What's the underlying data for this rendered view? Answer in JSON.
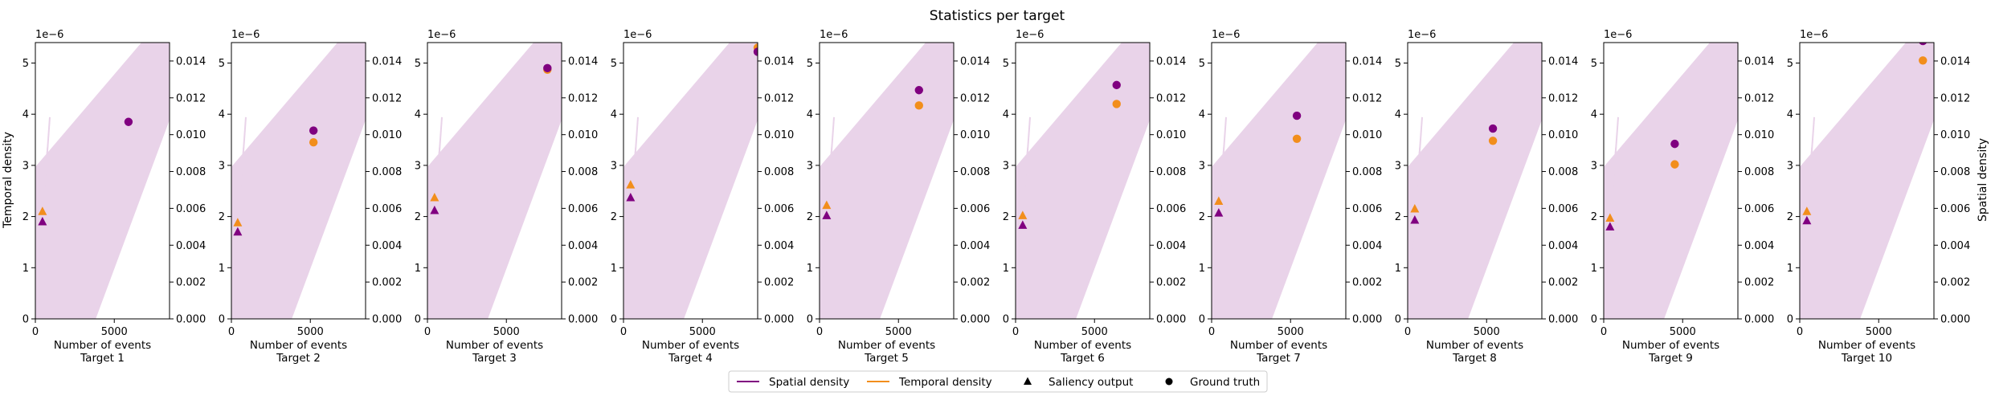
{
  "figure": {
    "title": "Statistics per target",
    "left_ylabel": "Temporal density",
    "right_ylabel": "Spatial density",
    "xlabel": "Number of events",
    "offset_text": "1e−6",
    "left_ticks": [
      "0",
      "1",
      "2",
      "3",
      "4",
      "5"
    ],
    "right_ticks": [
      "0.000",
      "0.002",
      "0.004",
      "0.006",
      "0.008",
      "0.010",
      "0.012",
      "0.014"
    ],
    "x_ticks": [
      "0",
      "5000"
    ]
  },
  "legend": {
    "items": [
      {
        "label": "Spatial density",
        "kind": "line",
        "color": "#800080"
      },
      {
        "label": "Temporal density",
        "kind": "line",
        "color": "#f28e1c"
      },
      {
        "label": "Saliency output",
        "kind": "triangle",
        "color": "#000000"
      },
      {
        "label": "Ground truth",
        "kind": "circle",
        "color": "#000000"
      }
    ]
  },
  "colors": {
    "spatial": "#800080",
    "temporal": "#f28e1c",
    "band": "#e9d3e9"
  },
  "chart_data": {
    "type": "scatter",
    "xlim": [
      0,
      8500
    ],
    "left_ylim": [
      0,
      5.4
    ],
    "right_ylim": [
      0,
      0.015
    ],
    "panels": [
      {
        "name": "Target 1",
        "gt_x": 5900,
        "gt_spatial": 3.85,
        "gt_temporal": null,
        "sal_x": 450,
        "sal_spatial": 1.9,
        "sal_temporal": 2.1
      },
      {
        "name": "Target 2",
        "gt_x": 5200,
        "gt_spatial": 3.68,
        "gt_temporal": 3.45,
        "sal_x": 400,
        "sal_spatial": 1.7,
        "sal_temporal": 1.88
      },
      {
        "name": "Target 3",
        "gt_x": 7600,
        "gt_spatial": 4.9,
        "gt_temporal": 4.87,
        "sal_x": 450,
        "sal_spatial": 2.12,
        "sal_temporal": 2.37
      },
      {
        "name": "Target 4",
        "gt_x": 8500,
        "gt_spatial": 5.22,
        "gt_temporal": 5.3,
        "sal_x": 450,
        "sal_spatial": 2.37,
        "sal_temporal": 2.62
      },
      {
        "name": "Target 5",
        "gt_x": 6300,
        "gt_spatial": 4.47,
        "gt_temporal": 4.17,
        "sal_x": 450,
        "sal_spatial": 2.02,
        "sal_temporal": 2.22
      },
      {
        "name": "Target 6",
        "gt_x": 6400,
        "gt_spatial": 4.57,
        "gt_temporal": 4.2,
        "sal_x": 450,
        "sal_spatial": 1.83,
        "sal_temporal": 2.02
      },
      {
        "name": "Target 7",
        "gt_x": 5400,
        "gt_spatial": 3.97,
        "gt_temporal": 3.52,
        "sal_x": 450,
        "sal_spatial": 2.07,
        "sal_temporal": 2.3
      },
      {
        "name": "Target 8",
        "gt_x": 5400,
        "gt_spatial": 3.72,
        "gt_temporal": 3.48,
        "sal_x": 450,
        "sal_spatial": 1.93,
        "sal_temporal": 2.15
      },
      {
        "name": "Target 9",
        "gt_x": 4500,
        "gt_spatial": 3.42,
        "gt_temporal": 3.02,
        "sal_x": 400,
        "sal_spatial": 1.8,
        "sal_temporal": 1.97
      },
      {
        "name": "Target 10",
        "gt_x": 7800,
        "gt_spatial": 5.43,
        "gt_temporal": 5.05,
        "sal_x": 450,
        "sal_spatial": 1.92,
        "sal_temporal": 2.1
      }
    ]
  }
}
